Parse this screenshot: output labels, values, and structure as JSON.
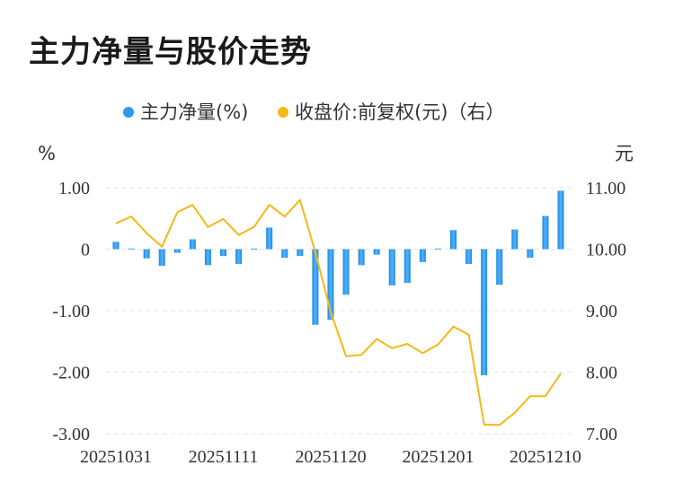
{
  "title": "主力净量与股价走势",
  "chart_data": {
    "type": "bar+line",
    "legend": [
      {
        "label": "主力净量(%)",
        "color": "#2b9af3"
      },
      {
        "label": "收盘价:前复权(元)（右）",
        "color": "#f5b816"
      }
    ],
    "left_axis": {
      "unit": "%",
      "ticks": [
        "1.00",
        "0",
        "-1.00",
        "-2.00",
        "-3.00"
      ],
      "range": [
        -3,
        1
      ]
    },
    "right_axis": {
      "unit": "元",
      "ticks": [
        "11.00",
        "10.00",
        "9.00",
        "8.00",
        "7.00"
      ],
      "range": [
        7,
        11
      ]
    },
    "x_tick_labels": [
      "20251031",
      "20251111",
      "20251120",
      "20251201",
      "20251210"
    ],
    "x_tick_indices": [
      0,
      7,
      14,
      21,
      28
    ],
    "series": [
      {
        "name": "主力净量(%)",
        "kind": "bar",
        "values": [
          0.12,
          0.01,
          -0.15,
          -0.27,
          -0.06,
          0.16,
          -0.26,
          -0.11,
          -0.24,
          0.01,
          0.35,
          -0.14,
          -0.11,
          -1.23,
          -1.15,
          -0.74,
          -0.26,
          -0.09,
          -0.59,
          -0.55,
          -0.21,
          0.01,
          0.31,
          -0.24,
          -2.05,
          -0.58,
          0.32,
          -0.14,
          0.54,
          0.95
        ]
      },
      {
        "name": "收盘价:前复权(元)（右）",
        "kind": "line",
        "values": [
          10.42,
          10.53,
          10.26,
          10.04,
          10.6,
          10.72,
          10.36,
          10.49,
          10.23,
          10.36,
          10.72,
          10.53,
          10.8,
          9.95,
          8.98,
          8.26,
          8.28,
          8.54,
          8.39,
          8.46,
          8.31,
          8.45,
          8.74,
          8.61,
          7.15,
          7.14,
          7.34,
          7.61,
          7.61,
          7.98
        ]
      }
    ]
  }
}
